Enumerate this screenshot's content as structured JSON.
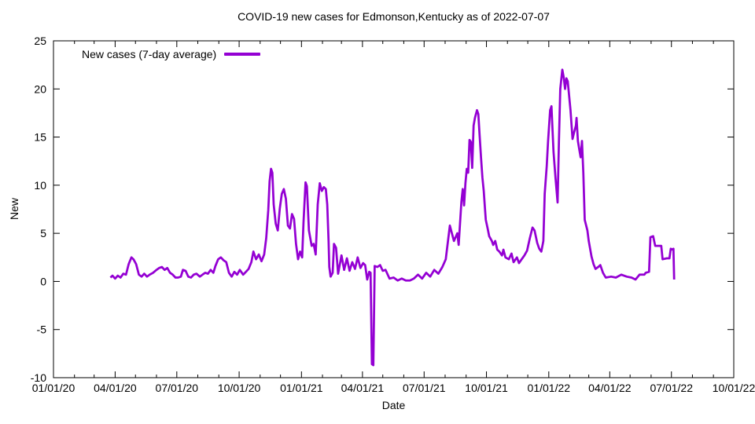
{
  "chart_data": {
    "type": "line",
    "title": "COVID-19 new cases for Edmonson,Kentucky as of 2022-07-07",
    "xlabel": "Date",
    "ylabel": "New",
    "grid": false,
    "legend_position": "top-left-inside",
    "background_color": "#ffffff",
    "axis_color": "#000000",
    "xlim": [
      "2020-01-01",
      "2022-10-01"
    ],
    "ylim": [
      -10,
      25
    ],
    "y_ticks": [
      -10,
      -5,
      0,
      5,
      10,
      15,
      20,
      25
    ],
    "x_ticks": [
      {
        "label": "01/01/20",
        "date": "2020-01-01"
      },
      {
        "label": "04/01/20",
        "date": "2020-04-01"
      },
      {
        "label": "07/01/20",
        "date": "2020-07-01"
      },
      {
        "label": "10/01/20",
        "date": "2020-10-01"
      },
      {
        "label": "01/01/21",
        "date": "2021-01-01"
      },
      {
        "label": "04/01/21",
        "date": "2021-04-01"
      },
      {
        "label": "07/01/21",
        "date": "2021-07-01"
      },
      {
        "label": "10/01/21",
        "date": "2021-10-01"
      },
      {
        "label": "01/01/22",
        "date": "2022-01-01"
      },
      {
        "label": "04/01/22",
        "date": "2022-04-01"
      },
      {
        "label": "07/01/22",
        "date": "2022-07-01"
      },
      {
        "label": "10/01/22",
        "date": "2022-10-01"
      }
    ],
    "series": [
      {
        "name": "New cases (7-day average)",
        "color": "#9400d3",
        "line_width": 2.75,
        "points": [
          [
            "2020-03-25",
            0.4
          ],
          [
            "2020-03-28",
            0.6
          ],
          [
            "2020-04-01",
            0.3
          ],
          [
            "2020-04-05",
            0.6
          ],
          [
            "2020-04-09",
            0.4
          ],
          [
            "2020-04-13",
            0.8
          ],
          [
            "2020-04-17",
            0.7
          ],
          [
            "2020-04-21",
            1.8
          ],
          [
            "2020-04-25",
            2.5
          ],
          [
            "2020-04-28",
            2.3
          ],
          [
            "2020-05-02",
            1.8
          ],
          [
            "2020-05-06",
            0.7
          ],
          [
            "2020-05-10",
            0.5
          ],
          [
            "2020-05-14",
            0.8
          ],
          [
            "2020-05-18",
            0.5
          ],
          [
            "2020-05-22",
            0.7
          ],
          [
            "2020-05-27",
            0.9
          ],
          [
            "2020-06-01",
            1.2
          ],
          [
            "2020-06-05",
            1.4
          ],
          [
            "2020-06-09",
            1.5
          ],
          [
            "2020-06-13",
            1.2
          ],
          [
            "2020-06-17",
            1.4
          ],
          [
            "2020-06-21",
            0.9
          ],
          [
            "2020-06-25",
            0.7
          ],
          [
            "2020-06-29",
            0.4
          ],
          [
            "2020-07-03",
            0.4
          ],
          [
            "2020-07-07",
            0.5
          ],
          [
            "2020-07-10",
            1.2
          ],
          [
            "2020-07-14",
            1.1
          ],
          [
            "2020-07-18",
            0.5
          ],
          [
            "2020-07-22",
            0.4
          ],
          [
            "2020-07-26",
            0.7
          ],
          [
            "2020-07-30",
            0.8
          ],
          [
            "2020-08-04",
            0.5
          ],
          [
            "2020-08-08",
            0.7
          ],
          [
            "2020-08-12",
            0.9
          ],
          [
            "2020-08-16",
            0.8
          ],
          [
            "2020-08-20",
            1.2
          ],
          [
            "2020-08-24",
            0.9
          ],
          [
            "2020-08-27",
            1.6
          ],
          [
            "2020-08-31",
            2.3
          ],
          [
            "2020-09-04",
            2.5
          ],
          [
            "2020-09-08",
            2.2
          ],
          [
            "2020-09-12",
            2.0
          ],
          [
            "2020-09-16",
            0.9
          ],
          [
            "2020-09-20",
            0.5
          ],
          [
            "2020-09-24",
            1.0
          ],
          [
            "2020-09-28",
            0.7
          ],
          [
            "2020-10-02",
            1.2
          ],
          [
            "2020-10-07",
            0.7
          ],
          [
            "2020-10-11",
            1.0
          ],
          [
            "2020-10-15",
            1.3
          ],
          [
            "2020-10-19",
            2.0
          ],
          [
            "2020-10-22",
            3.1
          ],
          [
            "2020-10-26",
            2.3
          ],
          [
            "2020-10-30",
            2.8
          ],
          [
            "2020-11-03",
            2.1
          ],
          [
            "2020-11-07",
            2.8
          ],
          [
            "2020-11-10",
            4.5
          ],
          [
            "2020-11-13",
            7.4
          ],
          [
            "2020-11-15",
            10.4
          ],
          [
            "2020-11-17",
            11.7
          ],
          [
            "2020-11-19",
            11.3
          ],
          [
            "2020-11-21",
            8.0
          ],
          [
            "2020-11-24",
            6.0
          ],
          [
            "2020-11-27",
            5.3
          ],
          [
            "2020-11-30",
            7.6
          ],
          [
            "2020-12-03",
            9.1
          ],
          [
            "2020-12-06",
            9.6
          ],
          [
            "2020-12-09",
            8.6
          ],
          [
            "2020-12-12",
            5.8
          ],
          [
            "2020-12-15",
            5.5
          ],
          [
            "2020-12-18",
            7.0
          ],
          [
            "2020-12-21",
            6.5
          ],
          [
            "2020-12-24",
            3.9
          ],
          [
            "2020-12-27",
            2.3
          ],
          [
            "2020-12-30",
            3.1
          ],
          [
            "2021-01-02",
            2.5
          ],
          [
            "2021-01-04",
            6.1
          ],
          [
            "2021-01-07",
            10.3
          ],
          [
            "2021-01-09",
            9.9
          ],
          [
            "2021-01-12",
            5.3
          ],
          [
            "2021-01-16",
            3.7
          ],
          [
            "2021-01-19",
            3.9
          ],
          [
            "2021-01-22",
            2.8
          ],
          [
            "2021-01-25",
            8.0
          ],
          [
            "2021-01-28",
            10.2
          ],
          [
            "2021-01-31",
            9.4
          ],
          [
            "2021-02-03",
            9.8
          ],
          [
            "2021-02-06",
            9.6
          ],
          [
            "2021-02-08",
            8.0
          ],
          [
            "2021-02-10",
            4.2
          ],
          [
            "2021-02-11",
            1.5
          ],
          [
            "2021-02-13",
            0.5
          ],
          [
            "2021-02-16",
            0.9
          ],
          [
            "2021-02-18",
            3.9
          ],
          [
            "2021-02-21",
            3.5
          ],
          [
            "2021-02-24",
            0.8
          ],
          [
            "2021-02-27",
            1.9
          ],
          [
            "2021-03-01",
            2.7
          ],
          [
            "2021-03-05",
            1.2
          ],
          [
            "2021-03-09",
            2.4
          ],
          [
            "2021-03-13",
            1.1
          ],
          [
            "2021-03-17",
            2.0
          ],
          [
            "2021-03-21",
            1.3
          ],
          [
            "2021-03-25",
            2.5
          ],
          [
            "2021-03-29",
            1.4
          ],
          [
            "2021-04-02",
            1.9
          ],
          [
            "2021-04-05",
            1.7
          ],
          [
            "2021-04-08",
            0.2
          ],
          [
            "2021-04-11",
            1.0
          ],
          [
            "2021-04-13",
            0.9
          ],
          [
            "2021-04-15",
            -8.6
          ],
          [
            "2021-04-17",
            -8.7
          ],
          [
            "2021-04-19",
            1.6
          ],
          [
            "2021-04-23",
            1.5
          ],
          [
            "2021-04-27",
            1.7
          ],
          [
            "2021-05-01",
            1.1
          ],
          [
            "2021-05-05",
            1.2
          ],
          [
            "2021-05-11",
            0.3
          ],
          [
            "2021-05-17",
            0.4
          ],
          [
            "2021-05-23",
            0.1
          ],
          [
            "2021-05-29",
            0.3
          ],
          [
            "2021-06-04",
            0.1
          ],
          [
            "2021-06-10",
            0.1
          ],
          [
            "2021-06-16",
            0.3
          ],
          [
            "2021-06-22",
            0.7
          ],
          [
            "2021-06-28",
            0.3
          ],
          [
            "2021-07-04",
            0.9
          ],
          [
            "2021-07-10",
            0.5
          ],
          [
            "2021-07-16",
            1.2
          ],
          [
            "2021-07-22",
            0.8
          ],
          [
            "2021-07-28",
            1.5
          ],
          [
            "2021-08-02",
            2.3
          ],
          [
            "2021-08-08",
            5.8
          ],
          [
            "2021-08-14",
            4.2
          ],
          [
            "2021-08-19",
            5.0
          ],
          [
            "2021-08-21",
            3.8
          ],
          [
            "2021-08-25",
            8.3
          ],
          [
            "2021-08-27",
            9.6
          ],
          [
            "2021-08-29",
            7.9
          ],
          [
            "2021-08-31",
            10.2
          ],
          [
            "2021-09-02",
            11.7
          ],
          [
            "2021-09-04",
            11.3
          ],
          [
            "2021-09-06",
            14.7
          ],
          [
            "2021-09-08",
            14.5
          ],
          [
            "2021-09-10",
            11.8
          ],
          [
            "2021-09-12",
            16.2
          ],
          [
            "2021-09-14",
            17.0
          ],
          [
            "2021-09-17",
            17.8
          ],
          [
            "2021-09-19",
            17.4
          ],
          [
            "2021-09-21",
            15.1
          ],
          [
            "2021-09-23",
            12.9
          ],
          [
            "2021-09-25",
            10.8
          ],
          [
            "2021-09-27",
            9.4
          ],
          [
            "2021-09-29",
            7.4
          ],
          [
            "2021-09-30",
            6.4
          ],
          [
            "2021-10-03",
            5.4
          ],
          [
            "2021-10-05",
            4.7
          ],
          [
            "2021-10-09",
            4.2
          ],
          [
            "2021-10-11",
            3.8
          ],
          [
            "2021-10-14",
            4.2
          ],
          [
            "2021-10-17",
            3.3
          ],
          [
            "2021-10-20",
            3.1
          ],
          [
            "2021-10-24",
            2.7
          ],
          [
            "2021-10-26",
            3.3
          ],
          [
            "2021-10-29",
            2.5
          ],
          [
            "2021-11-03",
            2.3
          ],
          [
            "2021-11-07",
            2.9
          ],
          [
            "2021-11-10",
            2.0
          ],
          [
            "2021-11-15",
            2.5
          ],
          [
            "2021-11-18",
            1.9
          ],
          [
            "2021-11-22",
            2.3
          ],
          [
            "2021-11-26",
            2.7
          ],
          [
            "2021-11-30",
            3.2
          ],
          [
            "2021-12-04",
            4.5
          ],
          [
            "2021-12-08",
            5.6
          ],
          [
            "2021-12-11",
            5.3
          ],
          [
            "2021-12-15",
            4.0
          ],
          [
            "2021-12-18",
            3.4
          ],
          [
            "2021-12-21",
            3.1
          ],
          [
            "2021-12-24",
            4.2
          ],
          [
            "2021-12-26",
            9.1
          ],
          [
            "2021-12-29",
            12.0
          ],
          [
            "2021-12-31",
            14.6
          ],
          [
            "2022-01-03",
            17.8
          ],
          [
            "2022-01-05",
            18.2
          ],
          [
            "2022-01-08",
            13.5
          ],
          [
            "2022-01-11",
            10.7
          ],
          [
            "2022-01-14",
            8.2
          ],
          [
            "2022-01-16",
            14.6
          ],
          [
            "2022-01-18",
            20.0
          ],
          [
            "2022-01-21",
            22.0
          ],
          [
            "2022-01-23",
            21.2
          ],
          [
            "2022-01-25",
            20.0
          ],
          [
            "2022-01-27",
            21.1
          ],
          [
            "2022-01-29",
            20.8
          ],
          [
            "2022-02-02",
            17.8
          ],
          [
            "2022-02-05",
            14.8
          ],
          [
            "2022-02-07",
            15.4
          ],
          [
            "2022-02-10",
            16.2
          ],
          [
            "2022-02-11",
            17.0
          ],
          [
            "2022-02-13",
            14.6
          ],
          [
            "2022-02-15",
            13.7
          ],
          [
            "2022-02-17",
            12.9
          ],
          [
            "2022-02-19",
            14.6
          ],
          [
            "2022-02-21",
            11.3
          ],
          [
            "2022-02-23",
            6.4
          ],
          [
            "2022-02-27",
            5.3
          ],
          [
            "2022-03-01",
            4.2
          ],
          [
            "2022-03-05",
            2.6
          ],
          [
            "2022-03-08",
            1.8
          ],
          [
            "2022-03-11",
            1.3
          ],
          [
            "2022-03-15",
            1.5
          ],
          [
            "2022-03-18",
            1.7
          ],
          [
            "2022-03-22",
            0.9
          ],
          [
            "2022-03-26",
            0.4
          ],
          [
            "2022-04-03",
            0.5
          ],
          [
            "2022-04-10",
            0.4
          ],
          [
            "2022-04-18",
            0.7
          ],
          [
            "2022-04-26",
            0.5
          ],
          [
            "2022-05-03",
            0.4
          ],
          [
            "2022-05-09",
            0.2
          ],
          [
            "2022-05-15",
            0.7
          ],
          [
            "2022-05-22",
            0.7
          ],
          [
            "2022-05-24",
            0.9
          ],
          [
            "2022-05-29",
            1.0
          ],
          [
            "2022-05-31",
            4.6
          ],
          [
            "2022-06-04",
            4.7
          ],
          [
            "2022-06-07",
            3.7
          ],
          [
            "2022-06-16",
            3.7
          ],
          [
            "2022-06-18",
            2.3
          ],
          [
            "2022-06-24",
            2.4
          ],
          [
            "2022-06-28",
            2.4
          ],
          [
            "2022-06-30",
            3.4
          ],
          [
            "2022-07-03",
            3.3
          ],
          [
            "2022-07-04",
            3.4
          ],
          [
            "2022-07-05",
            0.2
          ]
        ]
      }
    ]
  }
}
